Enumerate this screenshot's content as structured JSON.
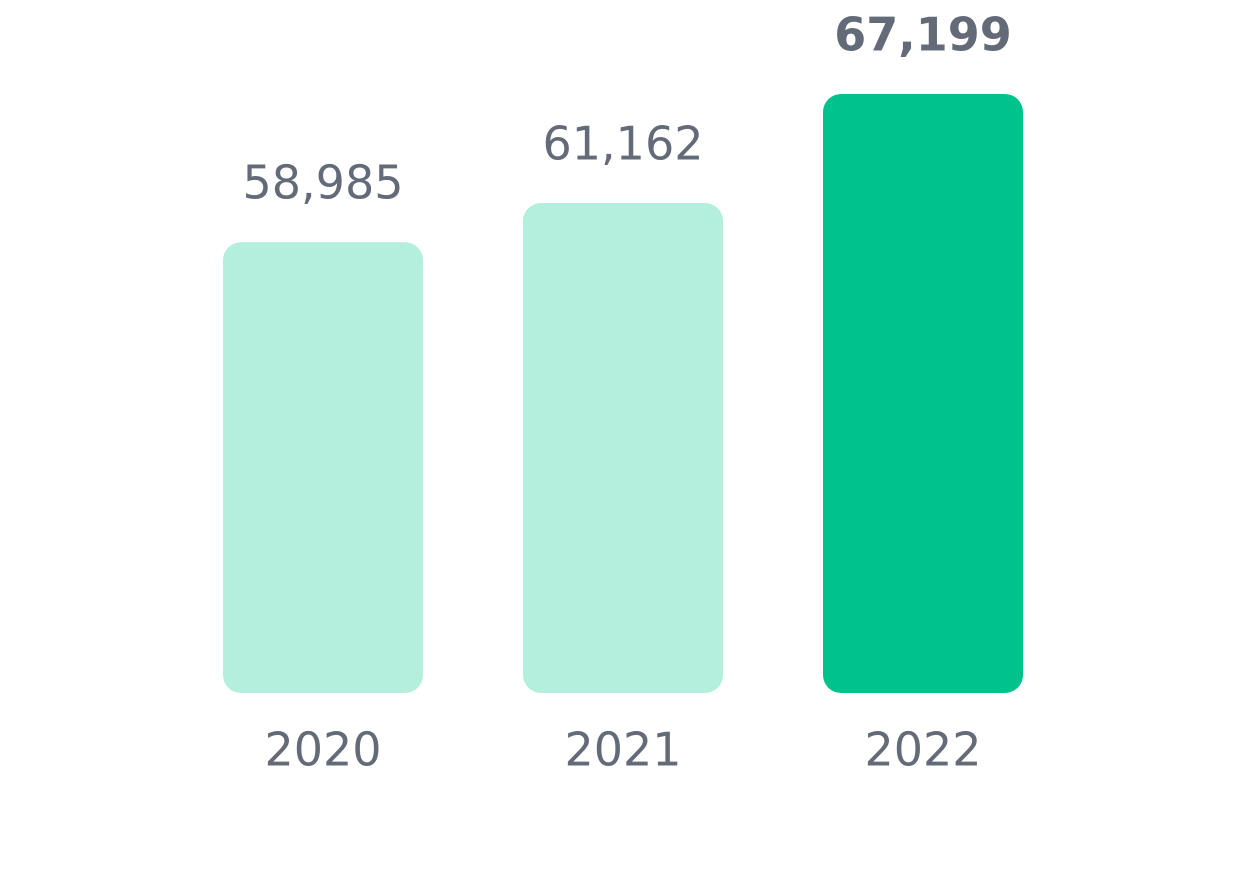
{
  "chart_data": {
    "type": "bar",
    "categories": [
      "2020",
      "2021",
      "2022"
    ],
    "values": [
      58985,
      61162,
      67199
    ],
    "value_labels": [
      "58,985",
      "61,162",
      "67,199"
    ],
    "colors": [
      "#b4eedd",
      "#b4eedd",
      "#00c28c"
    ],
    "highlight": "2022",
    "ylim": [
      34000,
      67500
    ]
  }
}
